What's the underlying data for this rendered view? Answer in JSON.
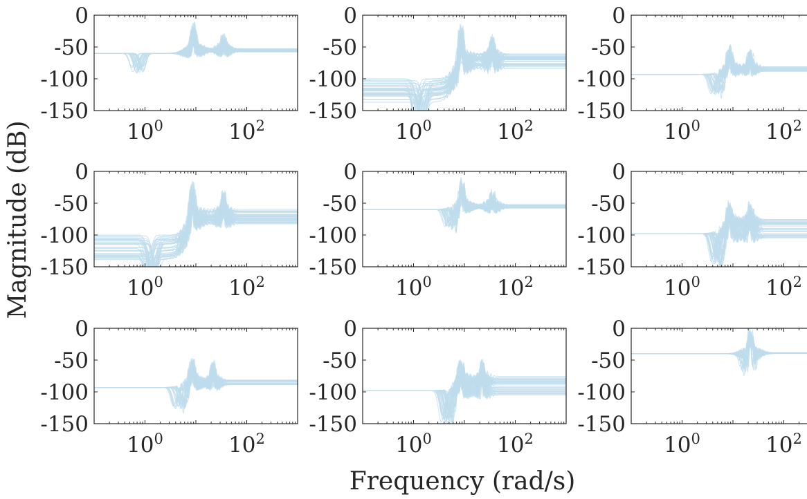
{
  "chart_data": {
    "type": "line",
    "layout": "3x3 grid of subplots",
    "xlabel": "Frequency (rad/s)",
    "ylabel": "Magnitude (dB)",
    "x_scale": "log",
    "x_range": [
      0.1,
      1000
    ],
    "y_range": [
      -150,
      0
    ],
    "y_ticks": [
      "0",
      "-50",
      "-100",
      "-150"
    ],
    "x_ticks": [
      {
        "base": "10",
        "exp": "0"
      },
      {
        "base": "10",
        "exp": "2"
      }
    ],
    "series_color": "#bfdcec",
    "grid": false,
    "legend": "none",
    "panels": [
      {
        "row": 1,
        "col": 1,
        "curves": 24,
        "low_db": -60,
        "low_spread": 0,
        "dip_w": 0.7,
        "dip_db": -92,
        "res1": {
          "w": 8.8,
          "db": -20
        },
        "res2": {
          "w": 35,
          "db": -40
        },
        "high_db": -55,
        "high_spread": 6
      },
      {
        "row": 1,
        "col": 2,
        "curves": 40,
        "low_db": -100,
        "low_spread": 40,
        "dip_w": 1.3,
        "dip_db": -150,
        "res1": {
          "w": 8.5,
          "db": -25
        },
        "res2": {
          "w": 35,
          "db": -40
        },
        "high_db": -72,
        "high_spread": 25
      },
      {
        "row": 1,
        "col": 3,
        "curves": 24,
        "low_db": -93,
        "low_spread": 0,
        "dip_w": 4.8,
        "dip_db": -128,
        "res1": {
          "w": 8.5,
          "db": -55
        },
        "res2": {
          "w": 22,
          "db": -60
        },
        "high_db": -85,
        "high_spread": 8
      },
      {
        "row": 2,
        "col": 1,
        "curves": 40,
        "low_db": -100,
        "low_spread": 40,
        "dip_w": 1.3,
        "dip_db": -150,
        "res1": {
          "w": 8.5,
          "db": -25
        },
        "res2": {
          "w": 35,
          "db": -40
        },
        "high_db": -72,
        "high_spread": 25
      },
      {
        "row": 2,
        "col": 2,
        "curves": 24,
        "low_db": -60,
        "low_spread": 0,
        "dip_w": 5.5,
        "dip_db": -92,
        "res1": {
          "w": 8.8,
          "db": -20
        },
        "res2": {
          "w": 35,
          "db": -40
        },
        "high_db": -55,
        "high_spread": 6
      },
      {
        "row": 2,
        "col": 3,
        "curves": 36,
        "low_db": -98,
        "low_spread": 0,
        "dip_w": 5.0,
        "dip_db": -150,
        "res1": {
          "w": 8.5,
          "db": -58
        },
        "res2": {
          "w": 22,
          "db": -60
        },
        "high_db": -90,
        "high_spread": 30
      },
      {
        "row": 3,
        "col": 1,
        "curves": 24,
        "low_db": -93,
        "low_spread": 0,
        "dip_w": 4.8,
        "dip_db": -128,
        "res1": {
          "w": 8.5,
          "db": -55
        },
        "res2": {
          "w": 22,
          "db": -60
        },
        "high_db": -85,
        "high_spread": 8
      },
      {
        "row": 3,
        "col": 2,
        "curves": 36,
        "low_db": -98,
        "low_spread": 0,
        "dip_w": 4.5,
        "dip_db": -150,
        "res1": {
          "w": 8.5,
          "db": -58
        },
        "res2": {
          "w": 22,
          "db": -60
        },
        "high_db": -90,
        "high_spread": 30
      },
      {
        "row": 3,
        "col": 3,
        "curves": 20,
        "low_db": -40,
        "low_spread": 0,
        "dip_w": 20,
        "dip_db": -70,
        "res1": {
          "w": 22,
          "db": -13
        },
        "res2": {
          "w": 22,
          "db": -13
        },
        "high_db": -39,
        "high_spread": 2
      }
    ]
  }
}
